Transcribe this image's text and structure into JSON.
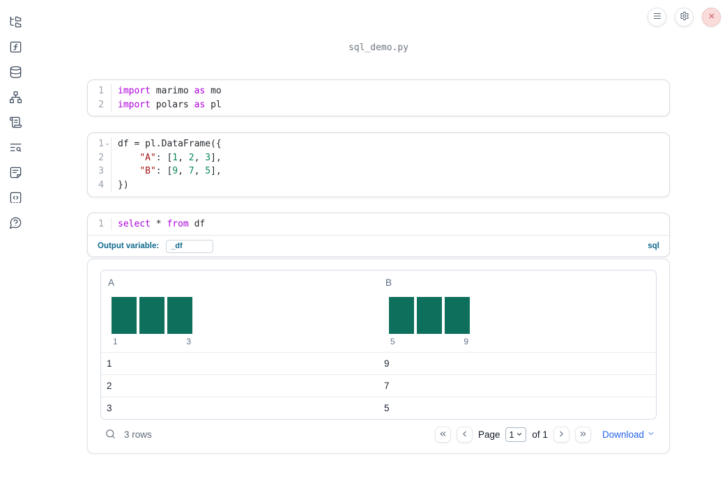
{
  "app": {
    "filename": "sql_demo.py"
  },
  "toolbar": {
    "icons": [
      "menu-icon",
      "settings-icon",
      "shutdown-icon"
    ]
  },
  "sidebar": {
    "icons": [
      "file-tree-icon",
      "function-icon",
      "database-icon",
      "dependency-graph-icon",
      "scratchpad-icon",
      "text-search-icon",
      "document-icon",
      "snippets-icon",
      "help-icon"
    ]
  },
  "colors": {
    "keyword": "#af00db",
    "string": "#a31515",
    "number": "#098658",
    "histogram_bar": "#0e6f5c",
    "accent_blue": "#11698f",
    "link_blue": "#2563eb"
  },
  "cells": [
    {
      "lines": [
        {
          "num": "1",
          "tokens": [
            {
              "t": "import",
              "c": "kw"
            },
            {
              "t": " marimo ",
              "c": "pl"
            },
            {
              "t": "as",
              "c": "kw"
            },
            {
              "t": " mo",
              "c": "pl"
            }
          ]
        },
        {
          "num": "2",
          "tokens": [
            {
              "t": "import",
              "c": "kw"
            },
            {
              "t": " polars ",
              "c": "pl"
            },
            {
              "t": "as",
              "c": "kw"
            },
            {
              "t": " pl",
              "c": "pl"
            }
          ]
        }
      ]
    },
    {
      "lines": [
        {
          "num": "1",
          "tokens": [
            {
              "t": "df = pl.DataFrame({",
              "c": "pl"
            }
          ]
        },
        {
          "num": "2",
          "tokens": [
            {
              "t": "    ",
              "c": "pl"
            },
            {
              "t": "\"A\"",
              "c": "str"
            },
            {
              "t": ": [",
              "c": "pl"
            },
            {
              "t": "1",
              "c": "num"
            },
            {
              "t": ", ",
              "c": "pl"
            },
            {
              "t": "2",
              "c": "num"
            },
            {
              "t": ", ",
              "c": "pl"
            },
            {
              "t": "3",
              "c": "num"
            },
            {
              "t": "],",
              "c": "pl"
            }
          ]
        },
        {
          "num": "3",
          "tokens": [
            {
              "t": "    ",
              "c": "pl"
            },
            {
              "t": "\"B\"",
              "c": "str"
            },
            {
              "t": ": [",
              "c": "pl"
            },
            {
              "t": "9",
              "c": "num"
            },
            {
              "t": ", ",
              "c": "pl"
            },
            {
              "t": "7",
              "c": "num"
            },
            {
              "t": ", ",
              "c": "pl"
            },
            {
              "t": "5",
              "c": "num"
            },
            {
              "t": "],",
              "c": "pl"
            }
          ]
        },
        {
          "num": "4",
          "tokens": [
            {
              "t": "})",
              "c": "pl"
            }
          ]
        }
      ]
    },
    {
      "lines": [
        {
          "num": "1",
          "tokens": [
            {
              "t": "select",
              "c": "kw"
            },
            {
              "t": " * ",
              "c": "pl"
            },
            {
              "t": "from",
              "c": "kw"
            },
            {
              "t": " df",
              "c": "pl"
            }
          ]
        }
      ],
      "output_variable_label": "Output variable:",
      "output_variable_value": "_df",
      "language_badge": "sql"
    }
  ],
  "table": {
    "columns": [
      {
        "name": "A",
        "hist": {
          "values": [
            1,
            1,
            1
          ],
          "min_label": "1",
          "max_label": "3"
        }
      },
      {
        "name": "B",
        "hist": {
          "values": [
            1,
            1,
            1
          ],
          "min_label": "5",
          "max_label": "9"
        }
      }
    ],
    "rows": [
      [
        "1",
        "9"
      ],
      [
        "2",
        "7"
      ],
      [
        "3",
        "5"
      ]
    ],
    "footer": {
      "row_count": "3 rows",
      "page_label": "Page",
      "page_value": "1",
      "of_label": "of 1",
      "download_label": "Download"
    }
  }
}
